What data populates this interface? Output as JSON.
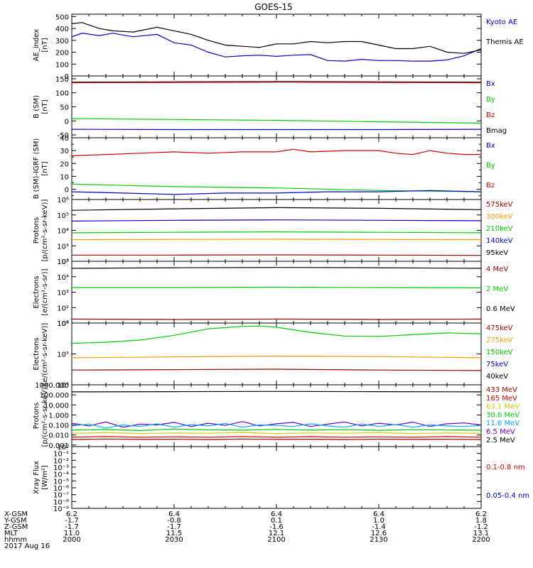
{
  "title": "GOES-15",
  "colors": {
    "black": "#000000",
    "blue": "#0000cc",
    "green": "#00cc00",
    "red": "#cc0000",
    "darkred": "#990000",
    "orange": "#ff9900",
    "yellow": "#cccc00",
    "cyan": "#00aaff",
    "purple": "#6600cc"
  },
  "time_axis": {
    "labels": [
      "2000",
      "2030",
      "2100",
      "2130",
      "2200"
    ],
    "values": [
      0,
      30,
      60,
      90,
      120
    ],
    "range": [
      0,
      120
    ]
  },
  "ephemeris": {
    "row_labels": [
      "X-GSM",
      "Y-GSM",
      "Z-GSM",
      "MLT",
      "hhmm",
      "2017 Aug 16"
    ],
    "columns": [
      [
        "6.2",
        "-1.7",
        "-1.7",
        "11.0",
        "2000"
      ],
      [
        "6.4",
        "-0.8",
        "-1.7",
        "11.5",
        "2030"
      ],
      [
        "6.4",
        "0.1",
        "-1.6",
        "12.1",
        "2100"
      ],
      [
        "6.4",
        "1.0",
        "-1.4",
        "12.6",
        "2130"
      ],
      [
        "6.2",
        "1.8",
        "-1.2",
        "13.1",
        "2200"
      ]
    ]
  },
  "chart_data": [
    {
      "type": "line",
      "ylabel": "AE_index",
      "yunit": "[nT]",
      "scale": "linear",
      "ylim": [
        0,
        520
      ],
      "yticks": [
        0,
        100,
        200,
        300,
        400,
        500
      ],
      "ytick_labels": [
        "0",
        "100",
        "200",
        "300",
        "400",
        "500"
      ],
      "legend": [
        {
          "text": "Kyoto AE",
          "color": "blue"
        },
        {
          "text": "Themis AE",
          "color": "black"
        }
      ],
      "series": [
        {
          "name": "Kyoto AE",
          "color": "blue",
          "x": [
            0,
            3,
            8,
            12,
            18,
            25,
            30,
            35,
            40,
            45,
            50,
            55,
            60,
            65,
            70,
            75,
            80,
            85,
            90,
            95,
            100,
            105,
            110,
            115,
            120
          ],
          "y": [
            330,
            360,
            340,
            360,
            330,
            350,
            280,
            260,
            200,
            160,
            170,
            175,
            165,
            175,
            180,
            130,
            125,
            140,
            130,
            130,
            125,
            125,
            135,
            170,
            230
          ]
        },
        {
          "name": "Themis AE",
          "color": "black",
          "x": [
            0,
            3,
            8,
            12,
            18,
            25,
            30,
            35,
            40,
            45,
            50,
            55,
            60,
            65,
            70,
            75,
            80,
            85,
            90,
            95,
            100,
            105,
            110,
            115,
            120
          ],
          "y": [
            440,
            450,
            400,
            380,
            370,
            410,
            380,
            350,
            300,
            260,
            250,
            240,
            270,
            270,
            290,
            280,
            290,
            290,
            260,
            230,
            230,
            250,
            200,
            190,
            220
          ]
        }
      ]
    },
    {
      "type": "line",
      "ylabel": "B (SM)",
      "yunit": "[nT]",
      "scale": "linear",
      "ylim": [
        -60,
        160
      ],
      "yticks": [
        -50,
        0,
        50,
        100,
        150
      ],
      "ytick_labels": [
        "-50",
        "0",
        "50",
        "100",
        "150"
      ],
      "legend": [
        {
          "text": "Bx",
          "color": "blue"
        },
        {
          "text": "By",
          "color": "green"
        },
        {
          "text": "Bz",
          "color": "red"
        },
        {
          "text": "Bmag",
          "color": "black"
        }
      ],
      "series": [
        {
          "name": "Bmag",
          "color": "black",
          "x": [
            0,
            30,
            60,
            90,
            120
          ],
          "y": [
            138,
            139,
            140,
            139,
            138
          ]
        },
        {
          "name": "Bz",
          "color": "red",
          "x": [
            0,
            30,
            60,
            90,
            120
          ],
          "y": [
            136,
            137,
            138,
            137,
            136
          ]
        },
        {
          "name": "By",
          "color": "green",
          "x": [
            0,
            30,
            60,
            90,
            120
          ],
          "y": [
            8,
            5,
            2,
            -3,
            -8
          ]
        },
        {
          "name": "Bx",
          "color": "blue",
          "x": [
            0,
            30,
            60,
            90,
            120
          ],
          "y": [
            -30,
            -31,
            -31,
            -31,
            -30
          ]
        }
      ]
    },
    {
      "type": "line",
      "ylabel": "B (SM)-IGRF (SM)",
      "yunit": "[nT]",
      "scale": "linear",
      "ylim": [
        -8,
        40
      ],
      "yticks": [
        0,
        10,
        20,
        30,
        40
      ],
      "ytick_labels": [
        "0",
        "10",
        "20",
        "30",
        "40"
      ],
      "extra_ticks": [
        -5,
        5,
        15,
        25,
        35
      ],
      "legend": [
        {
          "text": "Bx",
          "color": "blue"
        },
        {
          "text": "By",
          "color": "green"
        },
        {
          "text": "Bz",
          "color": "red"
        }
      ],
      "series": [
        {
          "name": "Bz",
          "color": "red",
          "x": [
            0,
            10,
            20,
            30,
            40,
            50,
            60,
            65,
            70,
            80,
            90,
            95,
            100,
            105,
            110,
            115,
            120
          ],
          "y": [
            26,
            27,
            28,
            29,
            28,
            29,
            29,
            31,
            29,
            30,
            30,
            28,
            27,
            30,
            28,
            27,
            27
          ]
        },
        {
          "name": "By",
          "color": "green",
          "x": [
            0,
            30,
            60,
            90,
            120
          ],
          "y": [
            4,
            2,
            1,
            -1,
            -2
          ]
        },
        {
          "name": "Bx",
          "color": "blue",
          "x": [
            0,
            15,
            30,
            45,
            60,
            75,
            90,
            105,
            120
          ],
          "y": [
            -2,
            -3,
            -4,
            -3,
            -3,
            -2,
            -2,
            -1,
            -2
          ]
        }
      ]
    },
    {
      "type": "line",
      "ylabel": "Protons",
      "yunit": "[p/(cm²-s-sr-keV)]",
      "scale": "log",
      "ylim": [
        100,
        1000000
      ],
      "yticks": [
        100,
        1000,
        10000,
        100000,
        1000000
      ],
      "ytick_labels": [
        "10²",
        "10³",
        "10⁴",
        "10⁵",
        "10⁶"
      ],
      "legend": [
        {
          "text": "575keV",
          "color": "darkred"
        },
        {
          "text": "300keV",
          "color": "orange"
        },
        {
          "text": "210keV",
          "color": "green"
        },
        {
          "text": "140keV",
          "color": "blue"
        },
        {
          "text": "95keV",
          "color": "black"
        }
      ],
      "series": [
        {
          "name": "95keV",
          "color": "black",
          "x": [
            0,
            30,
            60,
            90,
            120
          ],
          "y": [
            200000,
            250000,
            300000,
            270000,
            220000
          ]
        },
        {
          "name": "140keV",
          "color": "blue",
          "x": [
            0,
            30,
            60,
            90,
            120
          ],
          "y": [
            40000,
            45000,
            48000,
            45000,
            42000
          ]
        },
        {
          "name": "210keV",
          "color": "green",
          "x": [
            0,
            30,
            60,
            90,
            120
          ],
          "y": [
            7000,
            7500,
            8000,
            7500,
            7000
          ]
        },
        {
          "name": "300keV",
          "color": "orange",
          "x": [
            0,
            30,
            60,
            90,
            120
          ],
          "y": [
            2500,
            2600,
            2700,
            2600,
            2500
          ]
        },
        {
          "name": "575keV",
          "color": "darkred",
          "x": [
            0,
            30,
            60,
            90,
            120
          ],
          "y": [
            250,
            250,
            260,
            250,
            240
          ]
        }
      ]
    },
    {
      "type": "line",
      "ylabel": "Electrons",
      "yunit": "[e/(cm²-s-sr)]",
      "scale": "log",
      "ylim": [
        10,
        100000
      ],
      "yticks": [
        10,
        100,
        1000,
        10000,
        100000
      ],
      "ytick_labels": [
        "10¹",
        "10²",
        "10³",
        "10⁴",
        "10⁵"
      ],
      "legend": [
        {
          "text": "4 MeV",
          "color": "darkred"
        },
        {
          "text": "2 MeV",
          "color": "green"
        },
        {
          "text": "0.6 MeV",
          "color": "black"
        }
      ],
      "series": [
        {
          "name": "0.6 MeV",
          "color": "black",
          "x": [
            0,
            30,
            60,
            90,
            120
          ],
          "y": [
            35000,
            38000,
            40000,
            38000,
            35000
          ]
        },
        {
          "name": "2 MeV",
          "color": "green",
          "x": [
            0,
            30,
            60,
            90,
            120
          ],
          "y": [
            2000,
            2000,
            2100,
            2000,
            1900
          ]
        },
        {
          "name": "4 MeV",
          "color": "darkred",
          "x": [
            0,
            30,
            60,
            90,
            120
          ],
          "y": [
            18,
            17,
            18,
            17,
            18
          ]
        }
      ]
    },
    {
      "type": "line",
      "ylabel": "Electrons",
      "yunit": "[e/(cm²-s-sr-keV)]",
      "scale": "log",
      "ylim": [
        10000,
        1000000
      ],
      "yticks": [
        10000,
        100000,
        1000000
      ],
      "ytick_labels": [
        "10⁴",
        "10⁵",
        "10⁶"
      ],
      "legend": [
        {
          "text": "475keV",
          "color": "darkred"
        },
        {
          "text": "275keV",
          "color": "orange"
        },
        {
          "text": "150keV",
          "color": "green"
        },
        {
          "text": "75keV",
          "color": "blue"
        },
        {
          "text": "40keV",
          "color": "black"
        }
      ],
      "series": [
        {
          "name": "150keV",
          "color": "green",
          "x": [
            0,
            10,
            20,
            30,
            40,
            50,
            55,
            60,
            70,
            80,
            90,
            100,
            110,
            120
          ],
          "y": [
            220000,
            240000,
            280000,
            400000,
            650000,
            780000,
            800000,
            730000,
            500000,
            380000,
            370000,
            420000,
            480000,
            450000
          ]
        },
        {
          "name": "275keV",
          "color": "orange",
          "x": [
            0,
            30,
            60,
            90,
            120
          ],
          "y": [
            75000,
            80000,
            85000,
            82000,
            75000
          ]
        },
        {
          "name": "475keV",
          "color": "darkred",
          "x": [
            0,
            30,
            60,
            90,
            120
          ],
          "y": [
            30000,
            31000,
            32000,
            30000,
            29000
          ]
        }
      ]
    },
    {
      "type": "line",
      "ylabel": "Protons",
      "yunit": "[p/(cm²-s-sr-keV)]",
      "scale": "log",
      "ylim": [
        0.0007,
        1000
      ],
      "yticks": [
        0.001,
        0.01,
        0.1,
        1,
        10,
        100,
        1000
      ],
      "ytick_labels": [
        "0.001",
        "0.010",
        "0.100",
        "1.000",
        "10.000",
        "100.000",
        "1000.000"
      ],
      "legend": [
        {
          "text": "433 MeV",
          "color": "darkred"
        },
        {
          "text": "165 MeV",
          "color": "red"
        },
        {
          "text": "63.1 MeV",
          "color": "yellow"
        },
        {
          "text": "30.6 MeV",
          "color": "green"
        },
        {
          "text": "11.6 MeV",
          "color": "cyan"
        },
        {
          "text": "6.5 MeV",
          "color": "purple"
        },
        {
          "text": "2.5 MeV",
          "color": "black"
        }
      ],
      "series": [
        {
          "name": "2.5 MeV",
          "color": "black",
          "x": [
            0,
            30,
            60,
            90,
            120
          ],
          "y": [
            200,
            210,
            220,
            210,
            200
          ]
        },
        {
          "name": "6.5 MeV",
          "color": "purple",
          "x": [
            0,
            5,
            10,
            15,
            20,
            25,
            30,
            35,
            40,
            45,
            50,
            55,
            60,
            65,
            70,
            75,
            80,
            85,
            90,
            95,
            100,
            105,
            110,
            115,
            120
          ],
          "y": [
            0.15,
            0.08,
            0.2,
            0.06,
            0.12,
            0.1,
            0.18,
            0.07,
            0.15,
            0.09,
            0.22,
            0.08,
            0.13,
            0.18,
            0.07,
            0.12,
            0.2,
            0.08,
            0.15,
            0.1,
            0.19,
            0.07,
            0.13,
            0.16,
            0.1
          ]
        },
        {
          "name": "11.6 MeV",
          "color": "cyan",
          "x": [
            0,
            5,
            10,
            15,
            20,
            25,
            30,
            35,
            40,
            45,
            50,
            55,
            60,
            65,
            70,
            75,
            80,
            85,
            90,
            95,
            100,
            105,
            110,
            115,
            120
          ],
          "y": [
            0.08,
            0.12,
            0.05,
            0.1,
            0.07,
            0.13,
            0.06,
            0.11,
            0.08,
            0.14,
            0.06,
            0.1,
            0.09,
            0.07,
            0.13,
            0.08,
            0.06,
            0.12,
            0.07,
            0.11,
            0.06,
            0.1,
            0.08,
            0.07,
            0.09
          ]
        },
        {
          "name": "30.6 MeV",
          "color": "green",
          "x": [
            0,
            10,
            20,
            30,
            40,
            50,
            60,
            70,
            80,
            90,
            100,
            110,
            120
          ],
          "y": [
            0.03,
            0.035,
            0.028,
            0.04,
            0.032,
            0.03,
            0.036,
            0.03,
            0.034,
            0.029,
            0.033,
            0.031,
            0.03
          ]
        },
        {
          "name": "63.1 MeV",
          "color": "yellow",
          "x": [
            0,
            10,
            20,
            30,
            40,
            50,
            60,
            70,
            80,
            90,
            100,
            110,
            120
          ],
          "y": [
            0.015,
            0.017,
            0.014,
            0.016,
            0.015,
            0.018,
            0.014,
            0.016,
            0.015,
            0.017,
            0.014,
            0.016,
            0.015
          ]
        },
        {
          "name": "165 MeV",
          "color": "red",
          "x": [
            0,
            10,
            20,
            30,
            40,
            50,
            60,
            70,
            80,
            90,
            100,
            110,
            120
          ],
          "y": [
            0.006,
            0.007,
            0.006,
            0.0065,
            0.006,
            0.007,
            0.006,
            0.0068,
            0.006,
            0.0065,
            0.006,
            0.007,
            0.006
          ]
        },
        {
          "name": "433 MeV",
          "color": "darkred",
          "x": [
            0,
            10,
            20,
            30,
            40,
            50,
            60,
            70,
            80,
            90,
            100,
            110,
            120
          ],
          "y": [
            0.0035,
            0.004,
            0.0036,
            0.0038,
            0.0035,
            0.004,
            0.0036,
            0.0038,
            0.0035,
            0.0039,
            0.0036,
            0.0038,
            0.0035
          ]
        }
      ]
    },
    {
      "type": "line",
      "ylabel": "Xray Flux",
      "yunit": "[W/m²]",
      "scale": "log",
      "ylim": [
        1e-09,
        1
      ],
      "yticks": [
        1e-09,
        1e-08,
        1e-07,
        1e-06,
        1e-05,
        0.0001,
        0.001,
        0.01,
        0.1,
        1
      ],
      "ytick_labels": [
        "10⁻⁹",
        "10⁻⁸",
        "10⁻⁷",
        "10⁻⁶",
        "10⁻⁵",
        "10⁻⁴",
        "10⁻³",
        "10⁻²",
        "10⁻¹",
        "10⁰"
      ],
      "legend": [
        {
          "text": "0.1-0.8 nm",
          "color": "red"
        },
        {
          "text": "0.05-0.4 nm",
          "color": "blue"
        }
      ],
      "series": []
    }
  ]
}
